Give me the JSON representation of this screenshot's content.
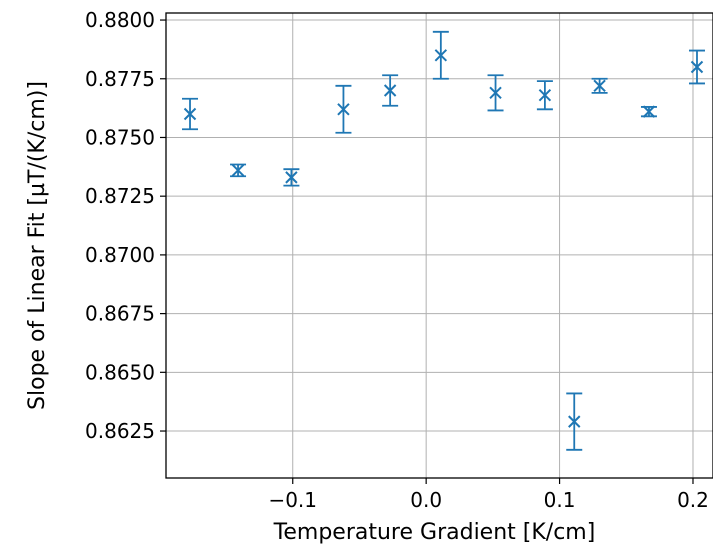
{
  "chart_data": {
    "type": "scatter",
    "xlabel": "Temperature Gradient [K/cm]",
    "ylabel": "Slope of Linear Fit [µT/(K/cm)]",
    "xlim": [
      -0.195,
      0.215
    ],
    "ylim": [
      0.8605,
      0.8803
    ],
    "x_ticks": [
      -0.1,
      0.0,
      0.1,
      0.2
    ],
    "x_tick_labels": [
      "−0.1",
      "0.0",
      "0.1",
      "0.2"
    ],
    "y_ticks": [
      0.8625,
      0.865,
      0.8675,
      0.87,
      0.8725,
      0.875,
      0.8775,
      0.88
    ],
    "y_tick_labels": [
      "0.8625",
      "0.8650",
      "0.8675",
      "0.8700",
      "0.8725",
      "0.8750",
      "0.8775",
      "0.8800"
    ],
    "grid": true,
    "marker": "x",
    "color": "#1f77b4",
    "series": [
      {
        "x": [
          -0.177,
          -0.141,
          -0.101,
          -0.062,
          -0.027,
          0.011,
          0.052,
          0.089,
          0.111,
          0.13,
          0.167,
          0.203
        ],
        "y": [
          0.876,
          0.8736,
          0.8733,
          0.8762,
          0.877,
          0.8785,
          0.8769,
          0.8768,
          0.8629,
          0.8772,
          0.8761,
          0.878
        ],
        "y_err": [
          0.00065,
          0.00025,
          0.00035,
          0.001,
          0.00065,
          0.001,
          0.00075,
          0.0006,
          0.0012,
          0.0003,
          0.0002,
          0.0007
        ]
      }
    ]
  }
}
